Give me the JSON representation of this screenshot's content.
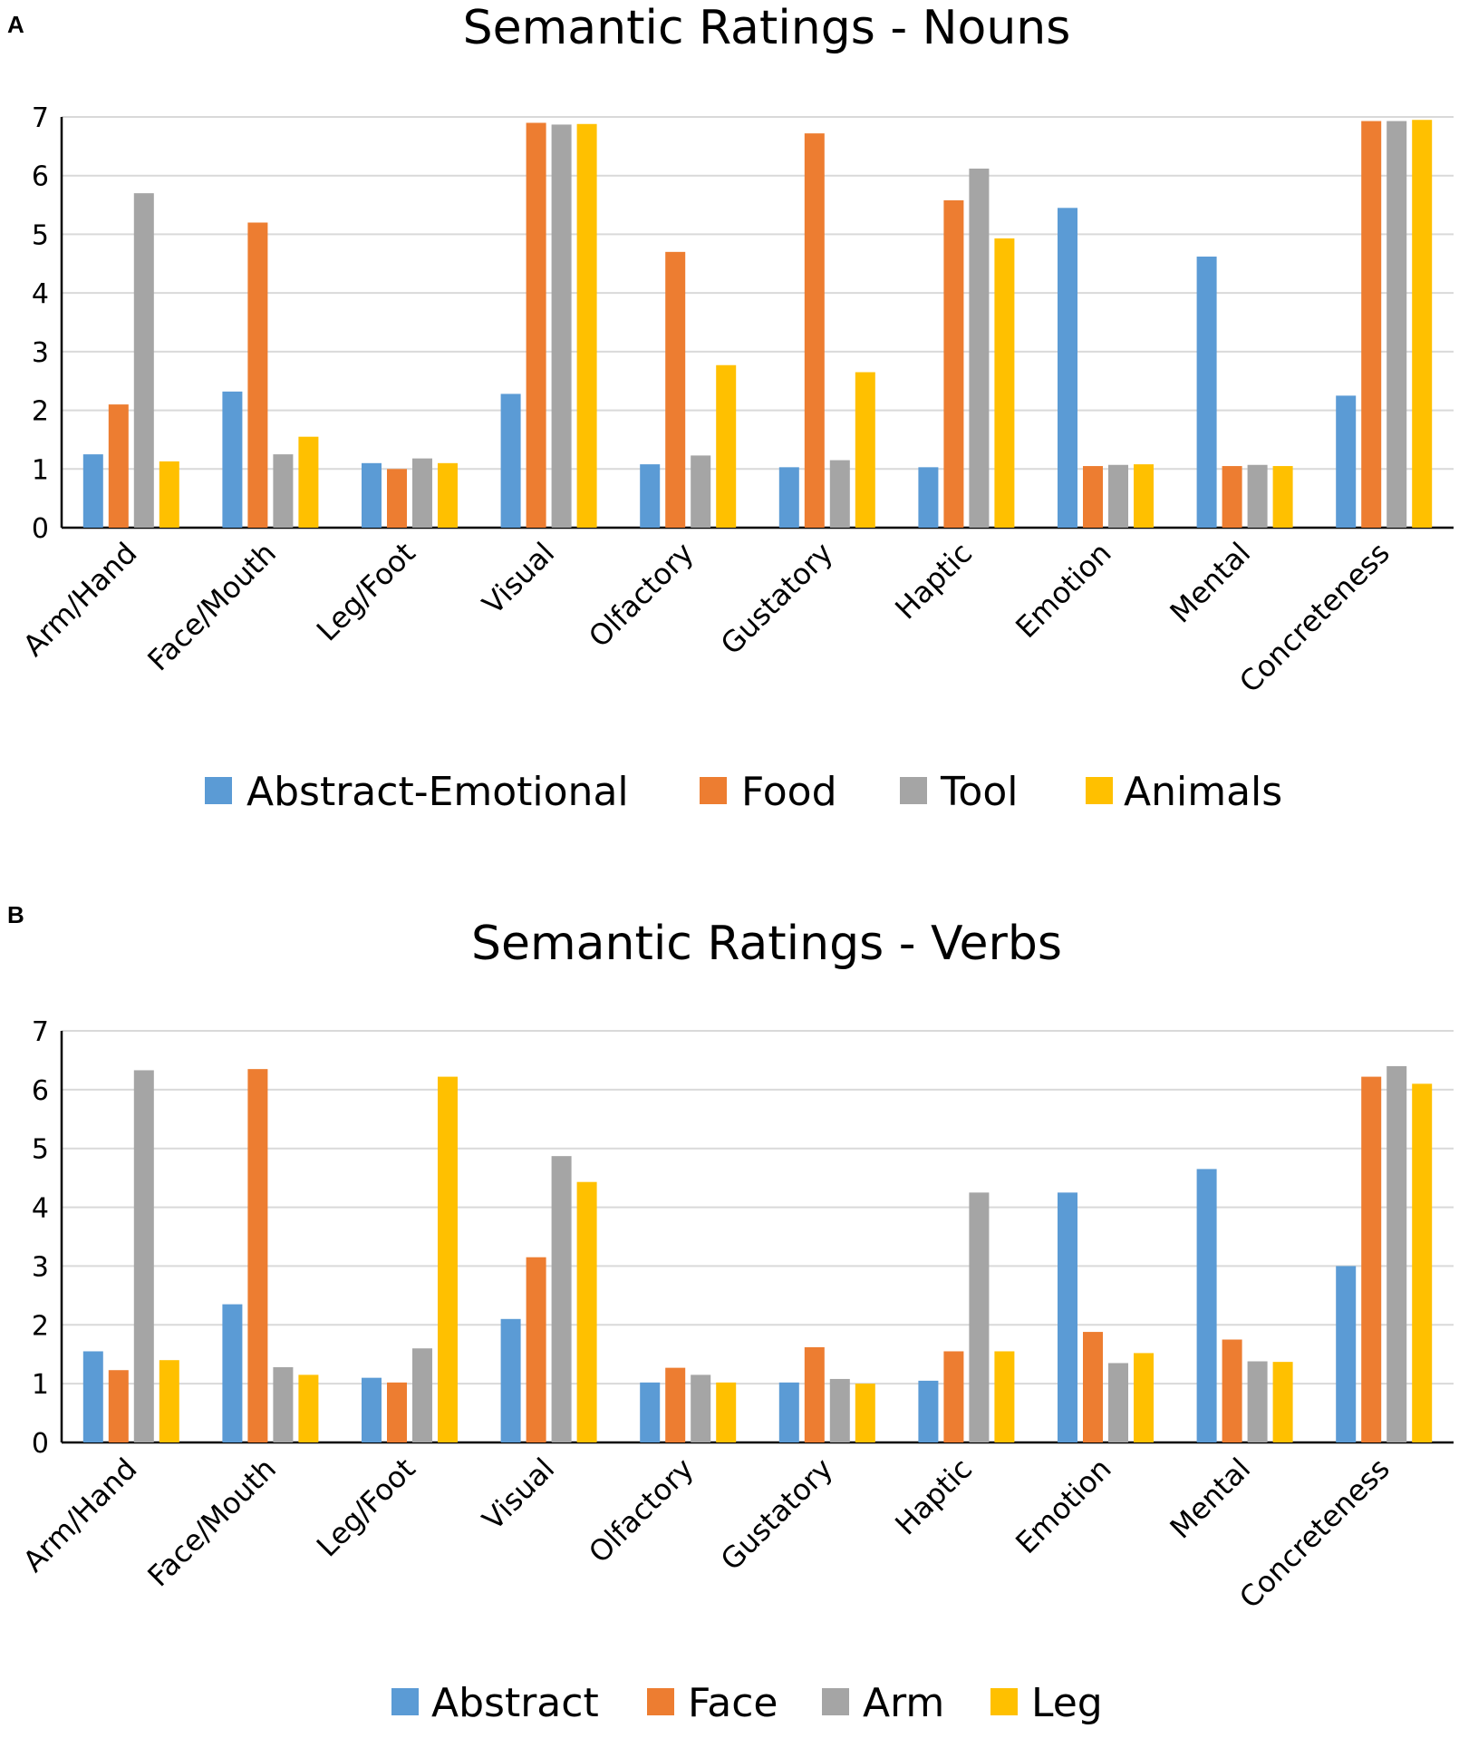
{
  "chart_data": [
    {
      "panel": "A",
      "type": "bar",
      "title": "Semantic Ratings - Nouns",
      "xlabel": "",
      "ylabel": "",
      "ylim": [
        0,
        7
      ],
      "yticks": [
        0,
        1,
        2,
        3,
        4,
        5,
        6,
        7
      ],
      "grid": true,
      "legend_position": "bottom",
      "categories": [
        "Arm/Hand",
        "Face/Mouth",
        "Leg/Foot",
        "Visual",
        "Olfactory",
        "Gustatory",
        "Haptic",
        "Emotion",
        "Mental",
        "Concreteness"
      ],
      "series": [
        {
          "name": "Abstract-Emotional",
          "color": "#5b9bd5",
          "values": [
            1.25,
            2.32,
            1.1,
            2.28,
            1.08,
            1.03,
            1.03,
            5.45,
            4.62,
            2.25
          ]
        },
        {
          "name": "Food",
          "color": "#ed7d31",
          "values": [
            2.1,
            5.2,
            1.0,
            6.9,
            4.7,
            6.72,
            5.58,
            1.05,
            1.05,
            6.93
          ]
        },
        {
          "name": "Tool",
          "color": "#a5a5a5",
          "values": [
            5.7,
            1.25,
            1.18,
            6.87,
            1.23,
            1.15,
            6.12,
            1.07,
            1.07,
            6.93
          ]
        },
        {
          "name": "Animals",
          "color": "#ffc000",
          "values": [
            1.13,
            1.55,
            1.1,
            6.88,
            2.77,
            2.65,
            4.93,
            1.08,
            1.05,
            6.95
          ]
        }
      ]
    },
    {
      "panel": "B",
      "type": "bar",
      "title": "Semantic Ratings - Verbs",
      "xlabel": "",
      "ylabel": "",
      "ylim": [
        0,
        7
      ],
      "yticks": [
        0,
        1,
        2,
        3,
        4,
        5,
        6,
        7
      ],
      "grid": true,
      "legend_position": "bottom",
      "categories": [
        "Arm/Hand",
        "Face/Mouth",
        "Leg/Foot",
        "Visual",
        "Olfactory",
        "Gustatory",
        "Haptic",
        "Emotion",
        "Mental",
        "Concreteness"
      ],
      "series": [
        {
          "name": "Abstract",
          "color": "#5b9bd5",
          "values": [
            1.55,
            2.35,
            1.1,
            2.1,
            1.02,
            1.02,
            1.05,
            4.25,
            4.65,
            3.0
          ]
        },
        {
          "name": "Face",
          "color": "#ed7d31",
          "values": [
            1.23,
            6.35,
            1.02,
            3.15,
            1.27,
            1.62,
            1.55,
            1.88,
            1.75,
            6.22
          ]
        },
        {
          "name": "Arm",
          "color": "#a5a5a5",
          "values": [
            6.33,
            1.28,
            1.6,
            4.87,
            1.15,
            1.08,
            4.25,
            1.35,
            1.38,
            6.4
          ]
        },
        {
          "name": "Leg",
          "color": "#ffc000",
          "values": [
            1.4,
            1.15,
            6.22,
            4.43,
            1.02,
            1.0,
            1.55,
            1.52,
            1.37,
            6.1
          ]
        }
      ]
    }
  ]
}
